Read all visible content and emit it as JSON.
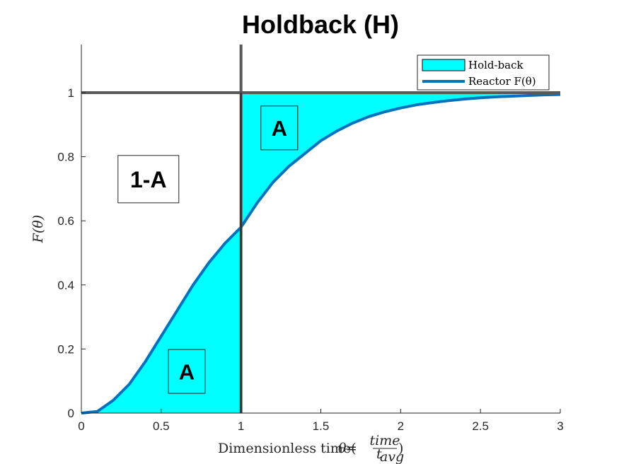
{
  "chart_data": {
    "type": "area",
    "title": "Holdback (H)",
    "xlabel": "Dimensionless time(θ = time / t_avg)",
    "xlabel_parts": {
      "prefix": "Dimensionless time(",
      "theta": "θ",
      "equals": " = ",
      "numerator": "time",
      "denominator": "t",
      "denominator_sub": "avg",
      "suffix": ")"
    },
    "ylabel": "F(θ)",
    "xlim": [
      0,
      3
    ],
    "ylim": [
      0,
      1.15
    ],
    "xticks": [
      0,
      0.5,
      1,
      1.5,
      2,
      2.5,
      3
    ],
    "xtick_labels": [
      "0",
      "0.5",
      "1",
      "1.5",
      "2",
      "2.5",
      "3"
    ],
    "yticks": [
      0,
      0.2,
      0.4,
      0.6,
      0.8,
      1
    ],
    "ytick_labels": [
      "0",
      "0.2",
      "0.4",
      "0.6",
      "0.8",
      "1"
    ],
    "grid": false,
    "legend_position": "top-right",
    "series": [
      {
        "name": "Reactor F(θ)",
        "kind": "line",
        "color": "#0072BD",
        "x": [
          0,
          0.1,
          0.2,
          0.3,
          0.4,
          0.5,
          0.6,
          0.7,
          0.8,
          0.9,
          1.0,
          1.1,
          1.2,
          1.3,
          1.4,
          1.5,
          1.6,
          1.7,
          1.8,
          1.9,
          2.0,
          2.1,
          2.2,
          2.3,
          2.4,
          2.5,
          2.6,
          2.7,
          2.8,
          2.9,
          3.0
        ],
        "y": [
          0,
          0.005,
          0.04,
          0.09,
          0.16,
          0.24,
          0.32,
          0.4,
          0.47,
          0.53,
          0.58,
          0.655,
          0.72,
          0.77,
          0.81,
          0.85,
          0.88,
          0.905,
          0.925,
          0.94,
          0.952,
          0.962,
          0.969,
          0.975,
          0.98,
          0.984,
          0.987,
          0.989,
          0.991,
          0.993,
          0.994
        ]
      },
      {
        "name": "Hold-back",
        "kind": "area",
        "color": "#00FFFF"
      }
    ],
    "reference_lines": [
      {
        "orientation": "horizontal",
        "value": 1,
        "color": "#595959"
      },
      {
        "orientation": "vertical",
        "value": 1,
        "color": "#595959"
      }
    ],
    "annotations": [
      {
        "text": "A",
        "x": 1.24,
        "y": 0.89
      },
      {
        "text": "1-A",
        "x": 0.42,
        "y": 0.73
      },
      {
        "text": "A",
        "x": 0.66,
        "y": 0.13
      }
    ]
  }
}
